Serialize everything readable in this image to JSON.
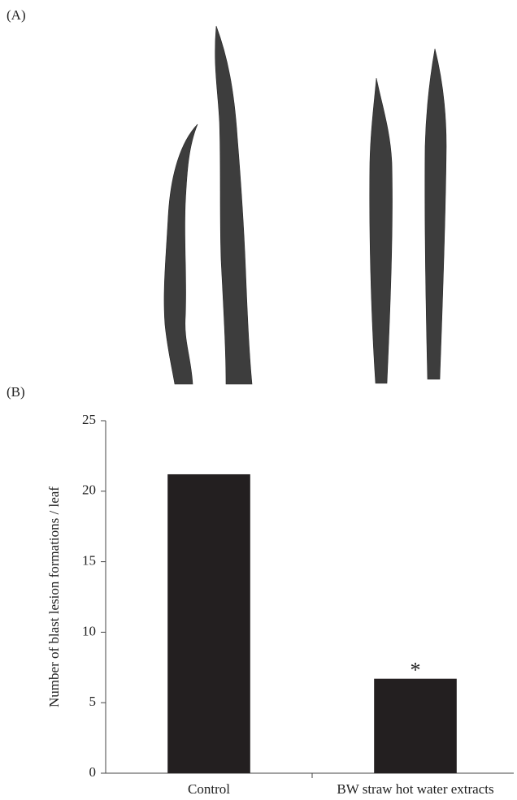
{
  "figure": {
    "panel_a_label": "(A)",
    "panel_b_label": "(B)"
  },
  "chart_data": {
    "type": "bar",
    "ylabel": "Number of blast lesion formations / leaf",
    "categories": [
      "Control",
      "BW straw hot water extracts"
    ],
    "values": [
      21.2,
      6.7
    ],
    "color": "#231f20",
    "annotation": "*",
    "ylim": [
      0,
      25
    ],
    "yticks": [
      0,
      5,
      10,
      15,
      20,
      25
    ],
    "grid": false
  }
}
